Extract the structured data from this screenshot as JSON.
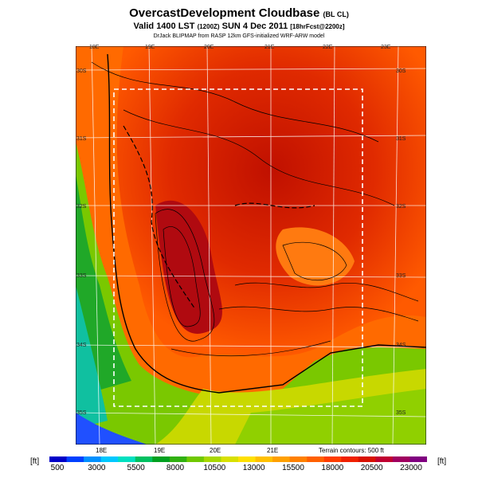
{
  "header": {
    "title": "OvercastDevelopment Cloudbase",
    "title_suffix": "(BL CL)",
    "subtitle": "Valid 1400 LST",
    "subtitle_run": "(1200Z)",
    "subtitle_date": "SUN 4 Dec 2011",
    "subtitle_fcst": "[18hrFcst@2200z]",
    "credit": "DrJack BLIPMAP from RASP 12km GFS-initialized WRF-ARW model"
  },
  "map": {
    "lon_labels_top": [
      "18E",
      "19E",
      "20E",
      "21E",
      "22E",
      "23E"
    ],
    "lon_labels_bottom": [
      "18E",
      "19E",
      "20E",
      "21E"
    ],
    "lat_labels_left": [
      "30S",
      "31S",
      "32S",
      "33S",
      "34S",
      "35S"
    ],
    "lat_labels_right": [
      "30S",
      "31S",
      "32S",
      "33S",
      "34S",
      "35S"
    ],
    "terrain_note": "Terrain contours: 500 ft"
  },
  "legend": {
    "unit_left": "[ft]",
    "unit_right": "[ft]",
    "labels": [
      "500",
      "3000",
      "5500",
      "8000",
      "10500",
      "13000",
      "15500",
      "18000",
      "20500",
      "23000"
    ],
    "colors": [
      "#0000c8",
      "#0040ff",
      "#0090ff",
      "#00c8ff",
      "#00e0c0",
      "#00c060",
      "#00a020",
      "#30b010",
      "#70c800",
      "#a8d800",
      "#d8e000",
      "#ffe000",
      "#ffc000",
      "#ffa000",
      "#ff8000",
      "#ff6000",
      "#ff3c00",
      "#f02000",
      "#d81000",
      "#c00030",
      "#a00060",
      "#800080"
    ]
  }
}
